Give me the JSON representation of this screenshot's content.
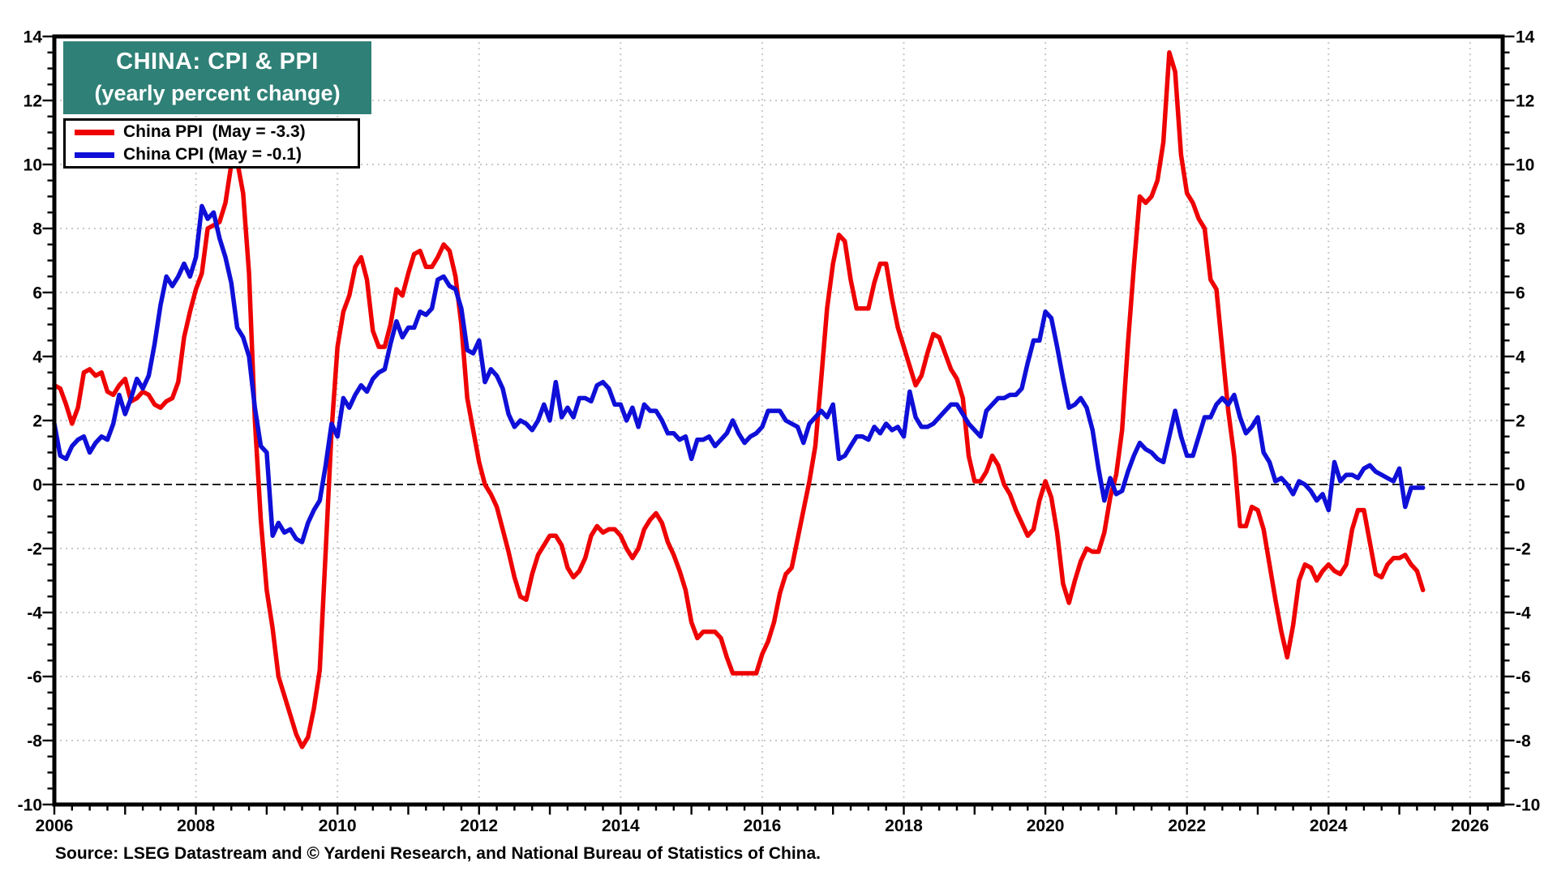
{
  "header": {
    "title": "CHINA: CPI & PPI",
    "subtitle": "(yearly percent change)",
    "box_color": "#2f8076",
    "text_color": "#ffffff"
  },
  "source": {
    "text": "Source: LSEG Datastream and © Yardeni Research, and National Bureau of Statistics of China."
  },
  "chart_data": {
    "type": "line",
    "title": "CHINA: CPI & PPI",
    "subtitle": "(yearly percent change)",
    "frequency": "monthly",
    "x_start_year": 2006,
    "x_end_label": "May 2025",
    "xlim": [
      2006,
      2026.46
    ],
    "ylim": [
      -10,
      14
    ],
    "ytick_major": 2,
    "ytick_minor": 0.5,
    "xtick_major_years": 1,
    "xtick_minor_years": 0.25,
    "xlabel_years": [
      2006,
      2008,
      2010,
      2012,
      2014,
      2016,
      2018,
      2020,
      2022,
      2024,
      2026
    ],
    "grid": "dotted-even-values-and-even-years",
    "grid_color": "#c9c9c9",
    "axis_color": "#000000",
    "zero_line": "dashed-black",
    "legend_position": "top-left",
    "series": [
      {
        "name": "China PPI",
        "legend_label": "China PPI  (May = -3.3)",
        "latest_value": -3.3,
        "color": "#ee0202",
        "values": [
          3.1,
          3.0,
          2.5,
          1.9,
          2.4,
          3.5,
          3.6,
          3.4,
          3.5,
          2.9,
          2.8,
          3.1,
          3.3,
          2.6,
          2.7,
          2.9,
          2.8,
          2.5,
          2.4,
          2.6,
          2.7,
          3.2,
          4.6,
          5.4,
          6.1,
          6.6,
          8.0,
          8.1,
          8.2,
          8.8,
          10.0,
          10.1,
          9.1,
          6.6,
          2.0,
          -1.1,
          -3.3,
          -4.5,
          -6.0,
          -6.6,
          -7.2,
          -7.8,
          -8.2,
          -7.9,
          -7.0,
          -5.8,
          -2.1,
          1.7,
          4.3,
          5.4,
          5.9,
          6.8,
          7.1,
          6.4,
          4.8,
          4.3,
          4.3,
          5.0,
          6.1,
          5.9,
          6.6,
          7.2,
          7.3,
          6.8,
          6.8,
          7.1,
          7.5,
          7.3,
          6.5,
          5.0,
          2.7,
          1.7,
          0.7,
          0.0,
          -0.3,
          -0.7,
          -1.4,
          -2.1,
          -2.9,
          -3.5,
          -3.6,
          -2.8,
          -2.2,
          -1.9,
          -1.6,
          -1.6,
          -1.9,
          -2.6,
          -2.9,
          -2.7,
          -2.3,
          -1.6,
          -1.3,
          -1.5,
          -1.4,
          -1.4,
          -1.6,
          -2.0,
          -2.3,
          -2.0,
          -1.4,
          -1.1,
          -0.9,
          -1.2,
          -1.8,
          -2.2,
          -2.7,
          -3.3,
          -4.3,
          -4.8,
          -4.6,
          -4.6,
          -4.6,
          -4.8,
          -5.4,
          -5.9,
          -5.9,
          -5.9,
          -5.9,
          -5.9,
          -5.3,
          -4.9,
          -4.3,
          -3.4,
          -2.8,
          -2.6,
          -1.7,
          -0.8,
          0.1,
          1.2,
          3.3,
          5.5,
          6.9,
          7.8,
          7.6,
          6.4,
          5.5,
          5.5,
          5.5,
          6.3,
          6.9,
          6.9,
          5.8,
          4.9,
          4.3,
          3.7,
          3.1,
          3.4,
          4.1,
          4.7,
          4.6,
          4.1,
          3.6,
          3.3,
          2.7,
          0.9,
          0.1,
          0.1,
          0.4,
          0.9,
          0.6,
          0.0,
          -0.3,
          -0.8,
          -1.2,
          -1.6,
          -1.4,
          -0.5,
          0.1,
          -0.4,
          -1.5,
          -3.1,
          -3.7,
          -3.0,
          -2.4,
          -2.0,
          -2.1,
          -2.1,
          -1.5,
          -0.4,
          0.3,
          1.7,
          4.4,
          6.8,
          9.0,
          8.8,
          9.0,
          9.5,
          10.7,
          13.5,
          12.9,
          10.3,
          9.1,
          8.8,
          8.3,
          8.0,
          6.4,
          6.1,
          4.2,
          2.3,
          0.9,
          -1.3,
          -1.3,
          -0.7,
          -0.8,
          -1.4,
          -2.5,
          -3.6,
          -4.6,
          -5.4,
          -4.4,
          -3.0,
          -2.5,
          -2.6,
          -3.0,
          -2.7,
          -2.5,
          -2.7,
          -2.8,
          -2.5,
          -1.4,
          -0.8,
          -0.8,
          -1.8,
          -2.8,
          -2.9,
          -2.5,
          -2.3,
          -2.3,
          -2.2,
          -2.5,
          -2.7,
          -3.3
        ]
      },
      {
        "name": "China CPI",
        "legend_label": "China CPI (May = -0.1)",
        "latest_value": -0.1,
        "color": "#0f0fd8",
        "values": [
          1.9,
          0.9,
          0.8,
          1.2,
          1.4,
          1.5,
          1.0,
          1.3,
          1.5,
          1.4,
          1.9,
          2.8,
          2.2,
          2.7,
          3.3,
          3.0,
          3.4,
          4.4,
          5.6,
          6.5,
          6.2,
          6.5,
          6.9,
          6.5,
          7.1,
          8.7,
          8.3,
          8.5,
          7.7,
          7.1,
          6.3,
          4.9,
          4.6,
          4.0,
          2.4,
          1.2,
          1.0,
          -1.6,
          -1.2,
          -1.5,
          -1.4,
          -1.7,
          -1.8,
          -1.2,
          -0.8,
          -0.5,
          0.6,
          1.9,
          1.5,
          2.7,
          2.4,
          2.8,
          3.1,
          2.9,
          3.3,
          3.5,
          3.6,
          4.4,
          5.1,
          4.6,
          4.9,
          4.9,
          5.4,
          5.3,
          5.5,
          6.4,
          6.5,
          6.2,
          6.1,
          5.5,
          4.2,
          4.1,
          4.5,
          3.2,
          3.6,
          3.4,
          3.0,
          2.2,
          1.8,
          2.0,
          1.9,
          1.7,
          2.0,
          2.5,
          2.0,
          3.2,
          2.1,
          2.4,
          2.1,
          2.7,
          2.7,
          2.6,
          3.1,
          3.2,
          3.0,
          2.5,
          2.5,
          2.0,
          2.4,
          1.8,
          2.5,
          2.3,
          2.3,
          2.0,
          1.6,
          1.6,
          1.4,
          1.5,
          0.8,
          1.4,
          1.4,
          1.5,
          1.2,
          1.4,
          1.6,
          2.0,
          1.6,
          1.3,
          1.5,
          1.6,
          1.8,
          2.3,
          2.3,
          2.3,
          2.0,
          1.9,
          1.8,
          1.3,
          1.9,
          2.1,
          2.3,
          2.1,
          2.5,
          0.8,
          0.9,
          1.2,
          1.5,
          1.5,
          1.4,
          1.8,
          1.6,
          1.9,
          1.7,
          1.8,
          1.5,
          2.9,
          2.1,
          1.8,
          1.8,
          1.9,
          2.1,
          2.3,
          2.5,
          2.5,
          2.2,
          1.9,
          1.7,
          1.5,
          2.3,
          2.5,
          2.7,
          2.7,
          2.8,
          2.8,
          3.0,
          3.8,
          4.5,
          4.5,
          5.4,
          5.2,
          4.3,
          3.3,
          2.4,
          2.5,
          2.7,
          2.4,
          1.7,
          0.5,
          -0.5,
          0.2,
          -0.3,
          -0.2,
          0.4,
          0.9,
          1.3,
          1.1,
          1.0,
          0.8,
          0.7,
          1.5,
          2.3,
          1.5,
          0.9,
          0.9,
          1.5,
          2.1,
          2.1,
          2.5,
          2.7,
          2.5,
          2.8,
          2.1,
          1.6,
          1.8,
          2.1,
          1.0,
          0.7,
          0.1,
          0.2,
          0.0,
          -0.3,
          0.1,
          0.0,
          -0.2,
          -0.5,
          -0.3,
          -0.8,
          0.7,
          0.1,
          0.3,
          0.3,
          0.2,
          0.5,
          0.6,
          0.4,
          0.3,
          0.2,
          0.1,
          0.5,
          -0.7,
          -0.1,
          -0.1,
          -0.1
        ]
      }
    ]
  }
}
